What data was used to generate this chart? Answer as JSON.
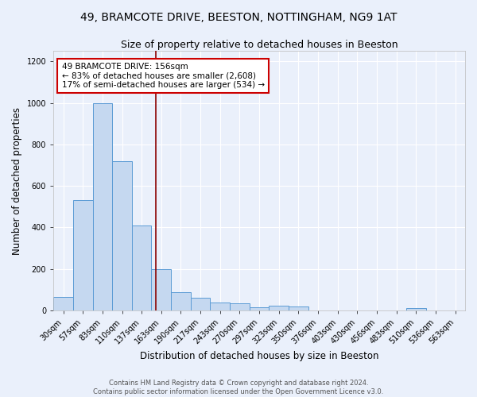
{
  "title": "49, BRAMCOTE DRIVE, BEESTON, NOTTINGHAM, NG9 1AT",
  "subtitle": "Size of property relative to detached houses in Beeston",
  "xlabel": "Distribution of detached houses by size in Beeston",
  "ylabel": "Number of detached properties",
  "categories": [
    "30sqm",
    "57sqm",
    "83sqm",
    "110sqm",
    "137sqm",
    "163sqm",
    "190sqm",
    "217sqm",
    "243sqm",
    "270sqm",
    "297sqm",
    "323sqm",
    "350sqm",
    "376sqm",
    "403sqm",
    "430sqm",
    "456sqm",
    "483sqm",
    "510sqm",
    "536sqm",
    "563sqm"
  ],
  "bar_heights": [
    65,
    530,
    1000,
    720,
    410,
    200,
    90,
    60,
    40,
    35,
    15,
    22,
    18,
    0,
    0,
    0,
    0,
    0,
    10,
    0,
    0
  ],
  "bar_color": "#c5d8f0",
  "bar_edge_color": "#5b9bd5",
  "property_line_color": "#8b0000",
  "annotation_text": "49 BRAMCOTE DRIVE: 156sqm\n← 83% of detached houses are smaller (2,608)\n17% of semi-detached houses are larger (534) →",
  "annotation_box_color": "#ffffff",
  "annotation_box_edge": "#cc0000",
  "ylim": [
    0,
    1250
  ],
  "yticks": [
    0,
    200,
    400,
    600,
    800,
    1000,
    1200
  ],
  "bg_color": "#eaf0fb",
  "grid_color": "#ffffff",
  "footnote": "Contains HM Land Registry data © Crown copyright and database right 2024.\nContains public sector information licensed under the Open Government Licence v3.0.",
  "title_fontsize": 10,
  "subtitle_fontsize": 9,
  "xlabel_fontsize": 8.5,
  "ylabel_fontsize": 8.5,
  "tick_fontsize": 7,
  "annot_fontsize": 7.5,
  "footnote_fontsize": 6
}
